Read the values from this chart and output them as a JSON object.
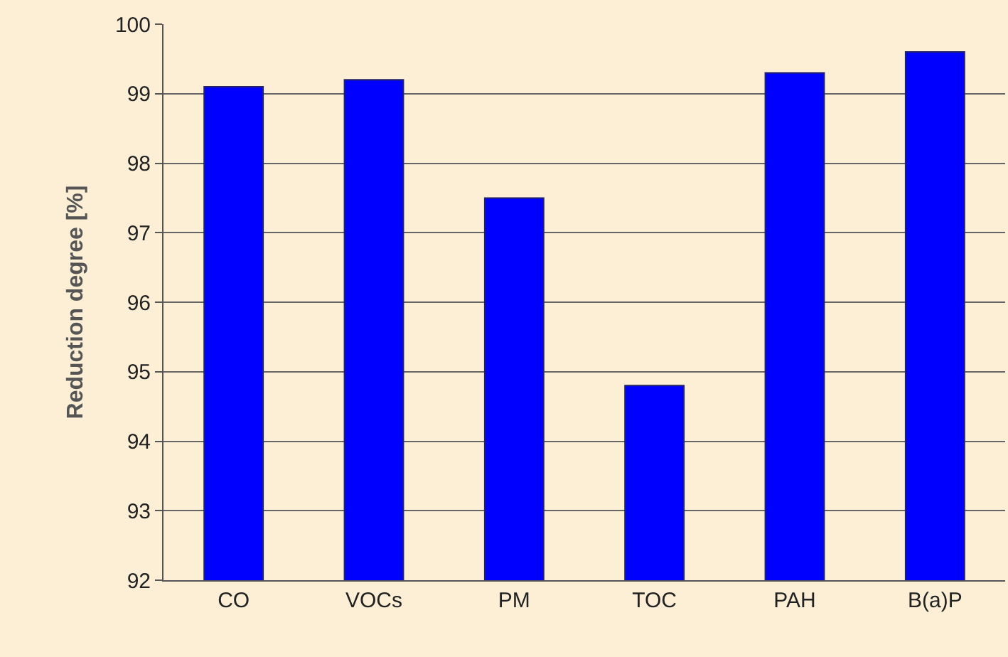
{
  "chart_data": {
    "type": "bar",
    "ylabel": "Reduction degree [%]",
    "categories": [
      "CO",
      "VOCs",
      "PM",
      "TOC",
      "PAH",
      "B(a)P"
    ],
    "values": [
      99.1,
      99.2,
      97.5,
      94.8,
      99.3,
      99.6
    ],
    "color": "#0000ff",
    "ylim": [
      92,
      100
    ],
    "yticks": [
      92,
      93,
      94,
      95,
      96,
      97,
      98,
      99,
      100
    ],
    "grid": "y",
    "legend": false
  }
}
